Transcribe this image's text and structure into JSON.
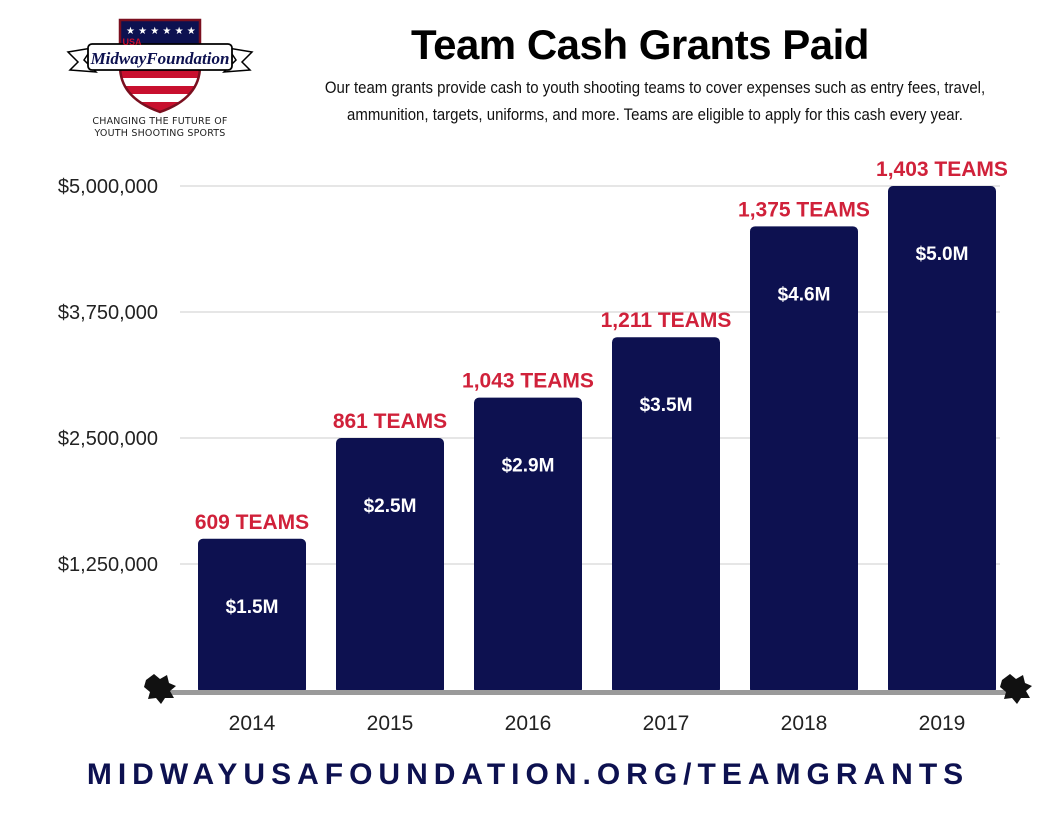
{
  "logo": {
    "usa_text": "USA",
    "name_text": "MidwayFoundation",
    "tagline": "CHANGING THE FUTURE OF\nYOUTH SHOOTING SPORTS"
  },
  "header": {
    "title": "Team Cash Grants Paid",
    "subtitle": "Our team grants provide cash to youth shooting teams to cover expenses such as entry fees, travel, ammunition, targets, uniforms, and more.  Teams are eligible to apply for this cash every year."
  },
  "chart_data": {
    "type": "bar",
    "title": "Team Cash Grants Paid",
    "categories": [
      "2014",
      "2015",
      "2016",
      "2017",
      "2018",
      "2019"
    ],
    "values": [
      1500000,
      2500000,
      2900000,
      3500000,
      4600000,
      5000000
    ],
    "value_labels": [
      "$1.5M",
      "$2.5M",
      "$2.9M",
      "$3.5M",
      "$4.6M",
      "$5.0M"
    ],
    "team_labels": [
      "609 TEAMS",
      "861 TEAMS",
      "1,043 TEAMS",
      "1,211 TEAMS",
      "1,375 TEAMS",
      "1,403 TEAMS"
    ],
    "yticks": [
      1250000,
      2500000,
      3750000,
      5000000
    ],
    "ytick_labels": [
      "$1,250,000",
      "$2,500,000",
      "$3,750,000",
      "$5,000,000"
    ],
    "ylim": [
      0,
      5000000
    ],
    "grid": true,
    "legend": "none",
    "colors": {
      "bar": "#0d1150",
      "team_label": "#d0213a",
      "value_label": "#ffffff",
      "grid": "#cccccc",
      "baseline": "#9a9a9a"
    }
  },
  "footer": {
    "url": "MIDWAYUSAFOUNDATION.ORG/TEAMGRANTS"
  }
}
